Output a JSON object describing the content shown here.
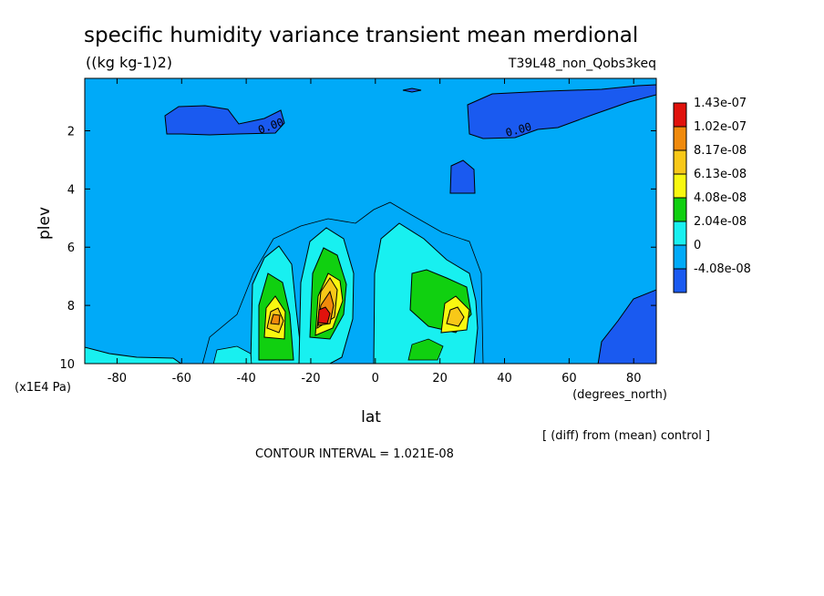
{
  "chart_data": {
    "type": "contour",
    "title": "specific humidity variance transient mean merdional",
    "units": "((kg kg-1)2)",
    "run_label": "T39L48_non_Qobs3keq",
    "xlabel": "lat",
    "x_units": "(degrees_north)",
    "ylabel": "plev",
    "y_units": "(x1E4 Pa)",
    "xlim": [
      -90,
      87
    ],
    "ylim": [
      10,
      0.2
    ],
    "x_ticks": [
      "-80",
      "-60",
      "-40",
      "-20",
      "0",
      "20",
      "40",
      "60",
      "80"
    ],
    "y_ticks": [
      "2",
      "4",
      "6",
      "8",
      "10"
    ],
    "contour_labels": [
      "0.00",
      "0.00"
    ],
    "colorbar": {
      "levels": [
        "1.43e-07",
        "1.02e-07",
        "8.17e-08",
        "6.13e-08",
        "4.08e-08",
        "2.04e-08",
        "0",
        "-4.08e-08"
      ],
      "colors": [
        "#e0120c",
        "#f08a0c",
        "#f8c818",
        "#f8f810",
        "#10d010",
        "#18f0f0",
        "#00aaf8",
        "#1a5af0"
      ]
    },
    "contour_interval": "CONTOUR INTERVAL = 1.021E-08",
    "comparison": "[ (diff) from (mean) control ]"
  }
}
